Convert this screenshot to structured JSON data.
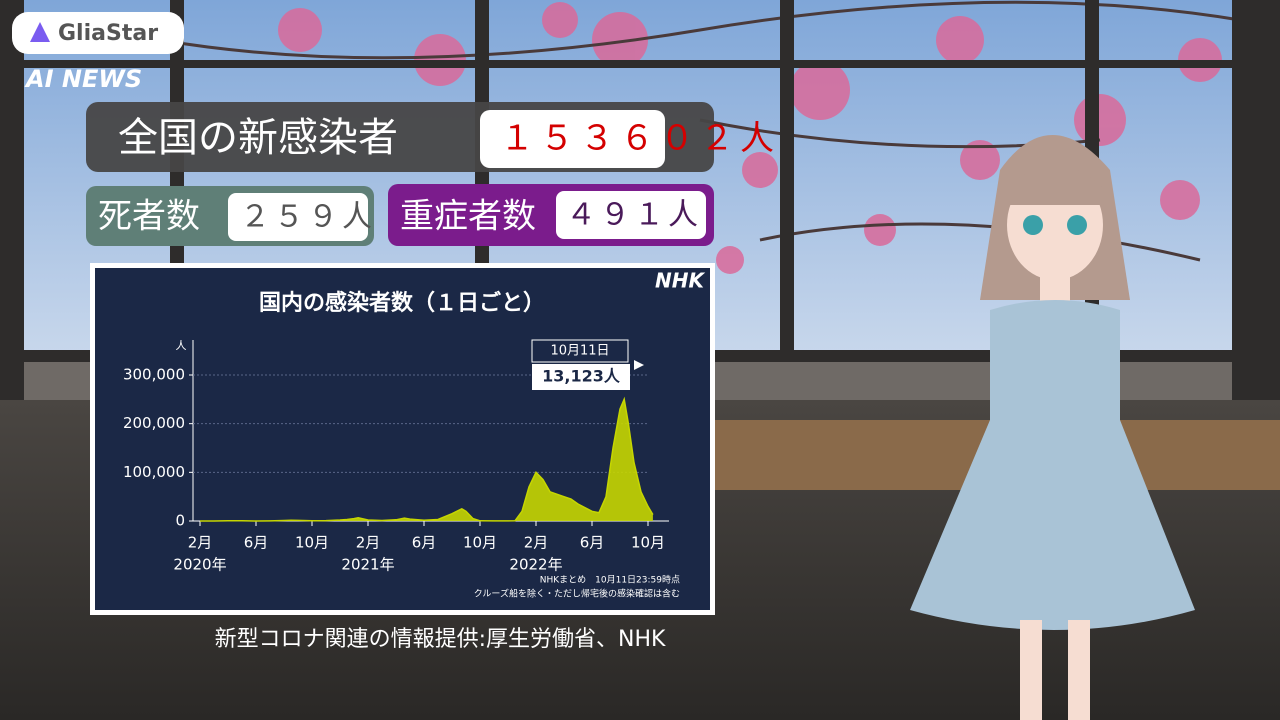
{
  "brand": {
    "name": "GliaStar",
    "tagline": "AI NEWS"
  },
  "headline": {
    "label": "全国の新感染者",
    "value": "１５３６０２人"
  },
  "deaths": {
    "label": "死者数",
    "value": "２５９人"
  },
  "severe": {
    "label": "重症者数",
    "value": "４９１人"
  },
  "caption": "新型コロナ関連の情報提供:厚生労働省、NHK",
  "chart_data": {
    "type": "area",
    "title": "国内の感染者数（１日ごと）",
    "logo": "NHK",
    "y_label": "人",
    "x": [
      1,
      2,
      3,
      4,
      5,
      6,
      7,
      7.5,
      8,
      9,
      10,
      11,
      11.5,
      12,
      12.3,
      13,
      14,
      15,
      15.6,
      16,
      17,
      18,
      19,
      19.7,
      20,
      20.5,
      21,
      22,
      23.5,
      24,
      24.5,
      25,
      25.5,
      26,
      27,
      27.5,
      28,
      29,
      29.5,
      30,
      30.5,
      31,
      31.3,
      31.6,
      32,
      32.5,
      33,
      33.35
    ],
    "series": [
      {
        "color": "#c6d600",
        "values": [
          0,
          50,
          500,
          400,
          100,
          300,
          1000,
          1500,
          1200,
          600,
          800,
          2000,
          3000,
          5000,
          6500,
          2000,
          1000,
          2500,
          6000,
          4000,
          1500,
          3000,
          15000,
          25000,
          20000,
          5000,
          500,
          200,
          500,
          20000,
          70000,
          100000,
          85000,
          60000,
          50000,
          45000,
          35000,
          20000,
          17000,
          50000,
          150000,
          230000,
          250000,
          200000,
          120000,
          60000,
          30000,
          13123
        ]
      }
    ],
    "xlim": [
      0.5,
      34.5
    ],
    "xticks": [
      {
        "value": 1,
        "label": "2月"
      },
      {
        "value": 5,
        "label": "6月"
      },
      {
        "value": 9,
        "label": "10月"
      },
      {
        "value": 13,
        "label": "2月"
      },
      {
        "value": 17,
        "label": "6月"
      },
      {
        "value": 21,
        "label": "10月"
      },
      {
        "value": 25,
        "label": "2月"
      },
      {
        "value": 29,
        "label": "6月"
      },
      {
        "value": 33,
        "label": "10月"
      }
    ],
    "year_labels": [
      {
        "value": 1,
        "label": "2020年"
      },
      {
        "value": 13,
        "label": "2021年"
      },
      {
        "value": 25,
        "label": "2022年"
      }
    ],
    "ylim": [
      0,
      330000
    ],
    "yticks": [
      0,
      {
        "value": 100000,
        "label": "100,000"
      },
      {
        "value": 200000,
        "label": "200,000"
      },
      {
        "value": 300000,
        "label": "300,000"
      }
    ],
    "grid": true,
    "annotation": {
      "date": "10月11日",
      "value": "13,123人"
    },
    "notes": [
      "NHKまとめ　10月11日23:59時点",
      "クルーズ船を除く・ただし帰宅後の感染確認は含む"
    ]
  }
}
